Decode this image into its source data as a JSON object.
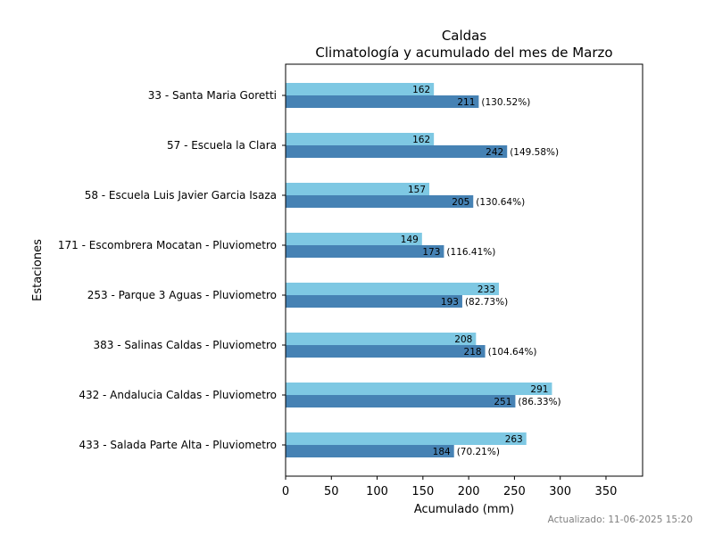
{
  "chart_data": {
    "type": "bar",
    "orientation": "horizontal",
    "title": "Caldas",
    "subtitle": "Climatología y acumulado del mes de Marzo",
    "xlabel": "Acumulado (mm)",
    "ylabel": "Estaciones",
    "xlim": [
      0,
      390
    ],
    "xticks": [
      "0",
      "50",
      "100",
      "150",
      "200",
      "250",
      "300",
      "350"
    ],
    "grid": false,
    "categories": [
      "33 - Santa Maria Goretti",
      "57 - Escuela la Clara",
      "58 - Escuela Luis Javier Garcia Isaza",
      "171 - Escombrera Mocatan - Pluviometro",
      "253 - Parque 3 Aguas - Pluviometro",
      "383 - Salinas Caldas - Pluviometro",
      "432 - Andalucia Caldas - Pluviometro",
      "433 - Salada Parte Alta - Pluviometro"
    ],
    "series": [
      {
        "color": "#7ec8e3",
        "values": [
          162,
          162,
          157,
          149,
          233,
          208,
          291,
          263
        ]
      },
      {
        "color": "#4682b4",
        "values": [
          211,
          242,
          205,
          173,
          193,
          218,
          251,
          184
        ],
        "percent_labels": [
          "(130.52%)",
          "(149.58%)",
          "(130.64%)",
          "(116.41%)",
          "(82.73%)",
          "(104.64%)",
          "(86.33%)",
          "(70.21%)"
        ]
      }
    ]
  },
  "footer": "Actualizado: 11-06-2025 15:20"
}
